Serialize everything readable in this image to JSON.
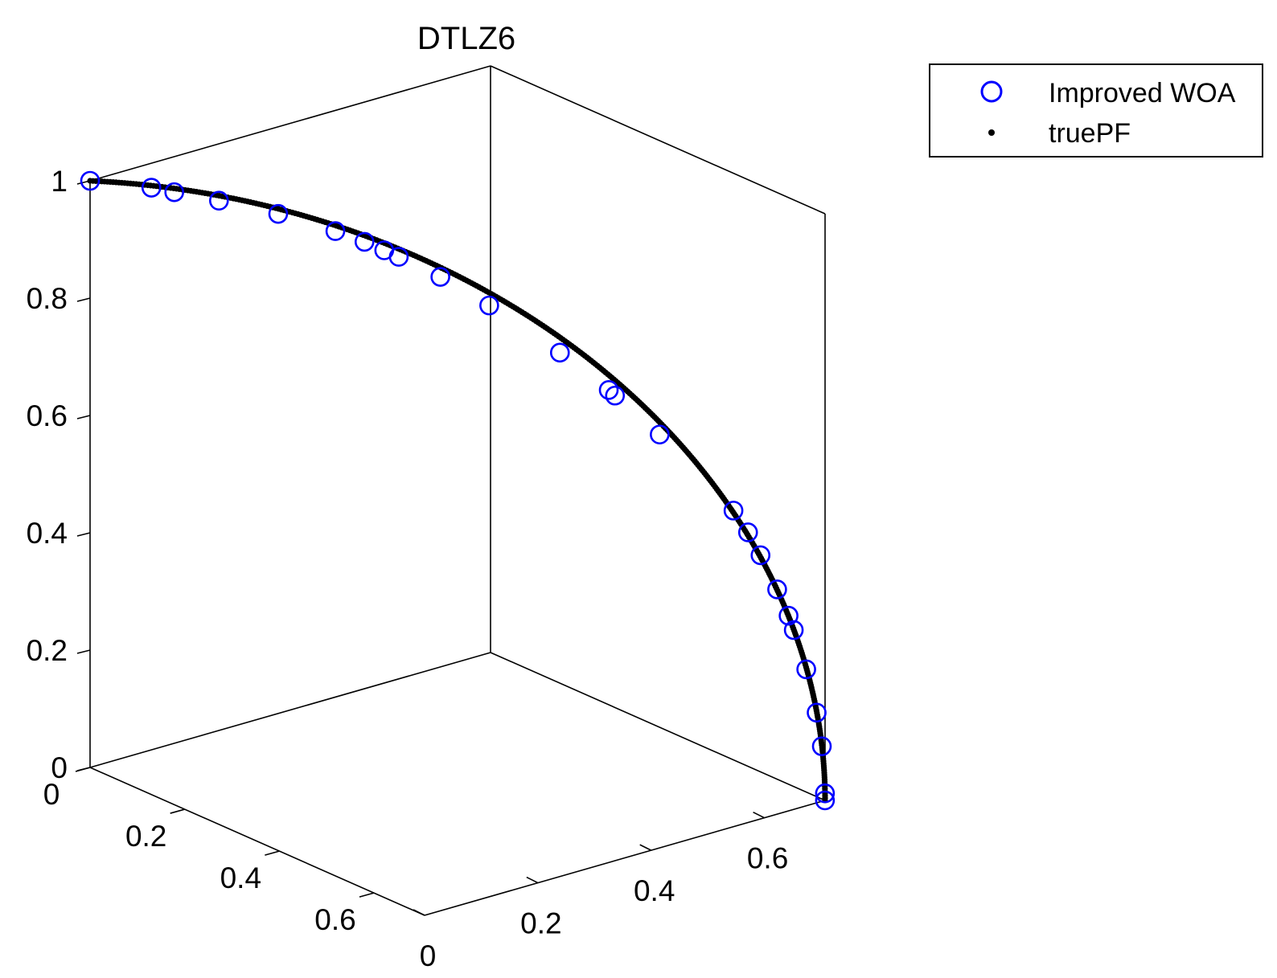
{
  "chart_data": {
    "type": "scatter",
    "title": "DTLZ6",
    "projection": "3d",
    "axes": {
      "x": {
        "ticks": [
          0,
          0.2,
          0.4,
          0.6
        ],
        "lim": [
          0,
          0.7071
        ]
      },
      "y": {
        "ticks": [
          0,
          0.2,
          0.4,
          0.6
        ],
        "lim": [
          0,
          0.7071
        ]
      },
      "z": {
        "ticks": [
          0,
          0.2,
          0.4,
          0.6,
          0.8,
          1
        ],
        "lim": [
          0,
          1
        ]
      }
    },
    "box": "on",
    "grid": "off",
    "legend": {
      "position": "top-right",
      "entries": [
        {
          "label": "Improved WOA",
          "marker": "circle",
          "color": "#0000ff"
        },
        {
          "label": "truePF",
          "marker": "dot",
          "color": "#000000"
        }
      ]
    },
    "series": [
      {
        "name": "Improved WOA",
        "marker": "o",
        "color": "#0000ff",
        "points": [
          {
            "x": 0.0,
            "y": 0.0,
            "z": 1.0
          },
          {
            "x": 0.059,
            "y": 0.059,
            "z": 0.993
          },
          {
            "x": 0.081,
            "y": 0.081,
            "z": 0.987
          },
          {
            "x": 0.124,
            "y": 0.124,
            "z": 0.976
          },
          {
            "x": 0.181,
            "y": 0.181,
            "z": 0.958
          },
          {
            "x": 0.236,
            "y": 0.236,
            "z": 0.933
          },
          {
            "x": 0.264,
            "y": 0.264,
            "z": 0.917
          },
          {
            "x": 0.283,
            "y": 0.283,
            "z": 0.904
          },
          {
            "x": 0.297,
            "y": 0.297,
            "z": 0.894
          },
          {
            "x": 0.337,
            "y": 0.337,
            "z": 0.863
          },
          {
            "x": 0.384,
            "y": 0.384,
            "z": 0.818
          },
          {
            "x": 0.452,
            "y": 0.452,
            "z": 0.743
          },
          {
            "x": 0.499,
            "y": 0.499,
            "z": 0.683
          },
          {
            "x": 0.505,
            "y": 0.505,
            "z": 0.674
          },
          {
            "x": 0.548,
            "y": 0.548,
            "z": 0.611
          },
          {
            "x": 0.619,
            "y": 0.619,
            "z": 0.487
          },
          {
            "x": 0.633,
            "y": 0.633,
            "z": 0.451
          },
          {
            "x": 0.645,
            "y": 0.645,
            "z": 0.413
          },
          {
            "x": 0.661,
            "y": 0.661,
            "z": 0.356
          },
          {
            "x": 0.672,
            "y": 0.672,
            "z": 0.312
          },
          {
            "x": 0.677,
            "y": 0.677,
            "z": 0.288
          },
          {
            "x": 0.689,
            "y": 0.689,
            "z": 0.222
          },
          {
            "x": 0.699,
            "y": 0.699,
            "z": 0.149
          },
          {
            "x": 0.704,
            "y": 0.704,
            "z": 0.092
          },
          {
            "x": 0.707,
            "y": 0.707,
            "z": 0.012
          },
          {
            "x": 0.707,
            "y": 0.707,
            "z": 0.0
          }
        ]
      },
      {
        "name": "truePF",
        "marker": ".",
        "color": "#000000",
        "equation": "x = y = sin(t)/sqrt(2), z = cos(t), t in [0, pi/2]"
      }
    ]
  }
}
